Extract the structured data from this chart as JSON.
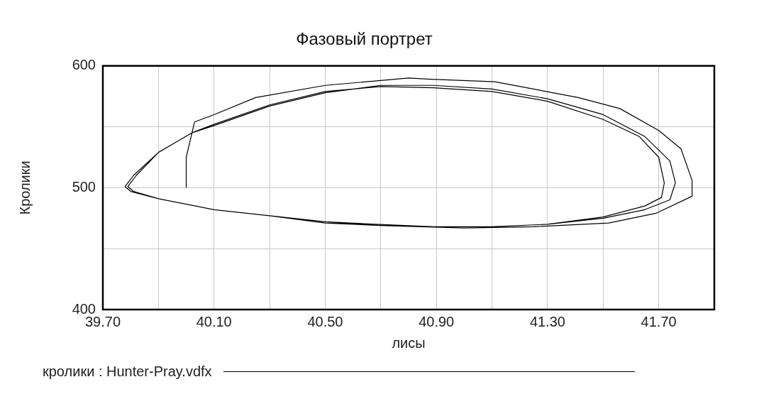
{
  "chart_data": {
    "type": "line",
    "title": "Фазовый портрет",
    "xlabel": "лисы",
    "ylabel": "Кролики",
    "x": [
      40.0,
      40.0,
      40.03,
      40.1,
      40.25,
      40.5,
      40.7,
      40.8,
      40.88,
      41.11,
      41.41,
      41.56,
      41.7,
      41.78,
      41.82,
      41.82,
      41.69,
      41.52,
      41.25,
      41.0,
      40.7,
      40.5,
      40.3,
      40.1,
      39.9,
      39.8,
      39.78,
      39.81,
      39.9,
      40.02,
      40.1,
      40.3,
      40.5,
      40.7,
      40.89,
      41.1,
      41.3,
      41.5,
      41.65,
      41.74,
      41.76,
      41.74,
      41.65,
      41.5,
      41.3,
      41.1,
      40.89,
      40.68,
      40.5,
      40.3,
      40.1,
      39.9,
      39.81,
      39.79,
      39.82,
      39.9,
      40.02,
      40.1,
      40.3,
      40.5,
      40.7,
      40.89,
      41.1,
      41.3,
      41.5,
      41.63,
      41.7,
      41.72,
      41.71,
      41.65,
      41.5,
      41.3,
      41.1,
      40.89,
      40.68,
      40.5,
      40.3,
      40.1,
      39.9,
      39.81,
      39.79
    ],
    "series": [
      {
        "name": "кролики : Hunter-Pray.vdfx",
        "color": "#000000",
        "values": [
          500,
          525,
          554,
          560,
          574,
          584,
          588,
          590,
          589,
          587,
          574,
          565,
          547,
          532,
          506,
          493,
          479,
          471,
          468,
          467,
          469,
          471,
          477,
          482,
          491,
          497,
          501,
          510,
          529,
          545,
          551,
          567,
          578,
          584,
          584,
          581,
          573,
          560,
          542,
          522,
          504,
          490,
          482,
          475,
          470,
          468,
          468,
          470,
          472,
          477,
          482,
          491,
          497,
          501,
          510,
          529,
          545,
          552,
          568,
          579,
          583,
          582,
          579,
          571,
          556,
          542,
          525,
          504,
          492,
          485,
          476,
          470,
          468,
          468,
          470,
          471,
          477,
          482,
          491,
          497,
          501
        ]
      }
    ],
    "xlim": [
      39.7,
      41.9
    ],
    "xticks": [
      {
        "value": 39.7,
        "label": "39.70"
      },
      {
        "value": 39.9,
        "label": null
      },
      {
        "value": 40.1,
        "label": "40.10"
      },
      {
        "value": 40.3,
        "label": null
      },
      {
        "value": 40.5,
        "label": "40.50"
      },
      {
        "value": 40.7,
        "label": null
      },
      {
        "value": 40.9,
        "label": "40.90"
      },
      {
        "value": 41.1,
        "label": null
      },
      {
        "value": 41.3,
        "label": "41.30"
      },
      {
        "value": 41.5,
        "label": null
      },
      {
        "value": 41.7,
        "label": "41.70"
      }
    ],
    "ylim": [
      400,
      600
    ],
    "yticks": [
      400,
      {
        "value": 450,
        "label": null
      },
      500,
      {
        "value": 550,
        "label": null
      },
      600
    ],
    "grid": true,
    "legend": "bottom",
    "marker": "none",
    "line_style": "solid"
  }
}
